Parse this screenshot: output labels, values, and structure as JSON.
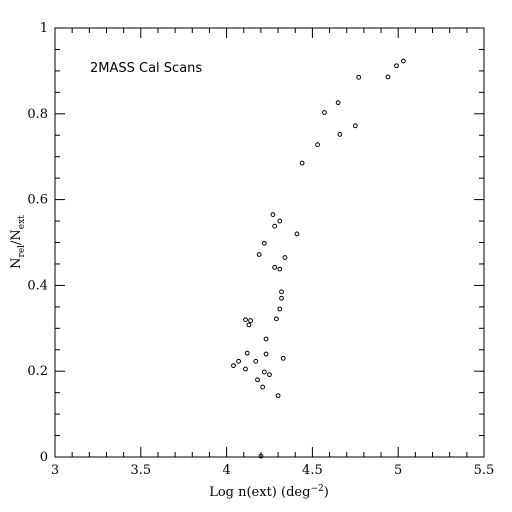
{
  "chart_data": {
    "type": "scatter",
    "title": "",
    "annotation": "2MASS Cal Scans",
    "xlabel": "Log n(ext) (deg",
    "xlabel_sup": "−2",
    "xlabel_close": ")",
    "ylabel": "N",
    "ylabel_sub1": "rel",
    "ylabel_mid": "/N",
    "ylabel_sub2": "ext",
    "xlim": [
      3,
      5.5
    ],
    "ylim": [
      0,
      1
    ],
    "x_ticks": [
      3,
      3.5,
      4,
      4.5,
      5,
      5.5
    ],
    "x_tick_labels": [
      "3",
      "3.5",
      "4",
      "4.5",
      "5",
      "5.5"
    ],
    "y_ticks": [
      0,
      0.2,
      0.4,
      0.6,
      0.8,
      1
    ],
    "y_tick_labels": [
      "0",
      "0.2",
      "0.4",
      "0.6",
      "0.8",
      "1"
    ],
    "grid": false,
    "legend": "none",
    "series": [
      {
        "points": [
          [
            4.04,
            0.213
          ],
          [
            4.07,
            0.223
          ],
          [
            4.11,
            0.205
          ],
          [
            4.12,
            0.242
          ],
          [
            4.11,
            0.32
          ],
          [
            4.13,
            0.308
          ],
          [
            4.14,
            0.318
          ],
          [
            4.17,
            0.223
          ],
          [
            4.18,
            0.18
          ],
          [
            4.21,
            0.163
          ],
          [
            4.22,
            0.198
          ],
          [
            4.23,
            0.24
          ],
          [
            4.23,
            0.275
          ],
          [
            4.25,
            0.192
          ],
          [
            4.3,
            0.143
          ],
          [
            4.29,
            0.322
          ],
          [
            4.31,
            0.345
          ],
          [
            4.32,
            0.37
          ],
          [
            4.32,
            0.385
          ],
          [
            4.33,
            0.23
          ],
          [
            4.19,
            0.472
          ],
          [
            4.22,
            0.498
          ],
          [
            4.27,
            0.565
          ],
          [
            4.28,
            0.538
          ],
          [
            4.31,
            0.55
          ],
          [
            4.28,
            0.442
          ],
          [
            4.31,
            0.438
          ],
          [
            4.34,
            0.465
          ],
          [
            4.41,
            0.52
          ],
          [
            4.44,
            0.685
          ],
          [
            4.53,
            0.728
          ],
          [
            4.57,
            0.803
          ],
          [
            4.65,
            0.826
          ],
          [
            4.66,
            0.752
          ],
          [
            4.75,
            0.772
          ],
          [
            4.77,
            0.885
          ],
          [
            4.94,
            0.886
          ],
          [
            4.99,
            0.912
          ],
          [
            5.03,
            0.923
          ],
          [
            4.2,
            0.002
          ]
        ]
      }
    ]
  }
}
